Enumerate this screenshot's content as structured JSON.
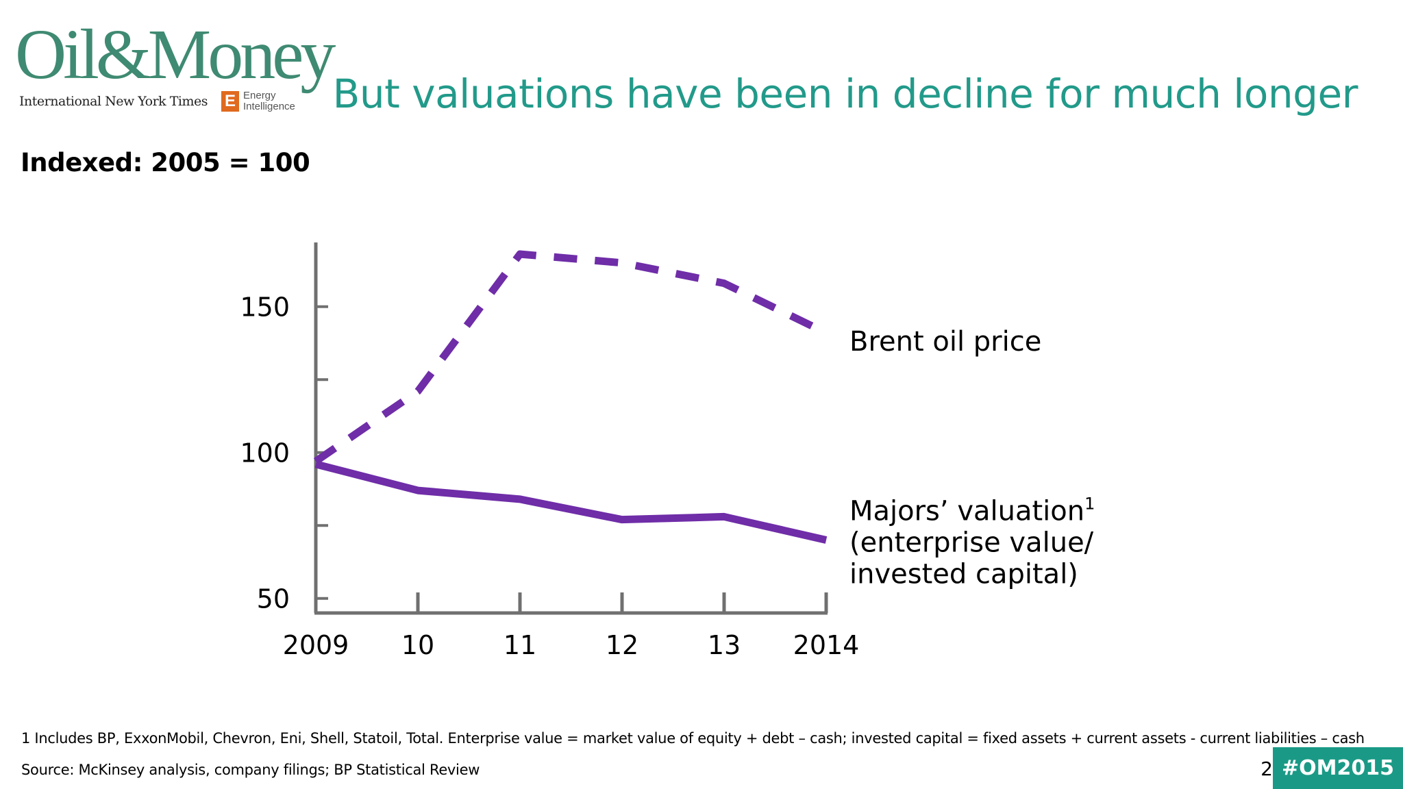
{
  "branding": {
    "logo_text": "Oil&Money",
    "partner_1": "International New York Times",
    "partner_2_mark": "E",
    "partner_2": "Energy Intelligence"
  },
  "slide": {
    "title": "But valuations have been in decline for much longer",
    "index_label": "Indexed: 2005 = 100",
    "footnote": "1 Includes BP, ExxonMobil, Chevron, Eni, Shell, Statoil, Total. Enterprise value = market value of equity + debt – cash; invested capital = fixed assets + current assets - current liabilities – cash",
    "source": "Source: McKinsey analysis, company filings; BP Statistical Review",
    "page_number": "2",
    "hashtag": "#OM2015"
  },
  "colors": {
    "title": "#229a8a",
    "logo": "#3f8a72",
    "series": "#6f2da8",
    "axis": "#707070",
    "hashtag_bg": "#1a9a86"
  },
  "chart_data": {
    "type": "line",
    "x": [
      2009,
      2010,
      2011,
      2012,
      2013,
      2014
    ],
    "tick_labels": [
      "2009",
      "10",
      "11",
      "12",
      "13",
      "2014"
    ],
    "y_ticks": [
      50,
      100,
      150
    ],
    "ylim": [
      45,
      172
    ],
    "grid": false,
    "series": [
      {
        "name": "Brent oil price",
        "style": "dashed",
        "values": [
          97,
          121,
          168,
          165,
          158,
          141
        ]
      },
      {
        "name": "Majors’ valuation",
        "name_suffix": "1",
        "name_lines": [
          "(enterprise value/",
          "invested capital)"
        ],
        "style": "solid",
        "values": [
          96,
          87,
          84,
          77,
          78,
          70
        ]
      }
    ]
  }
}
